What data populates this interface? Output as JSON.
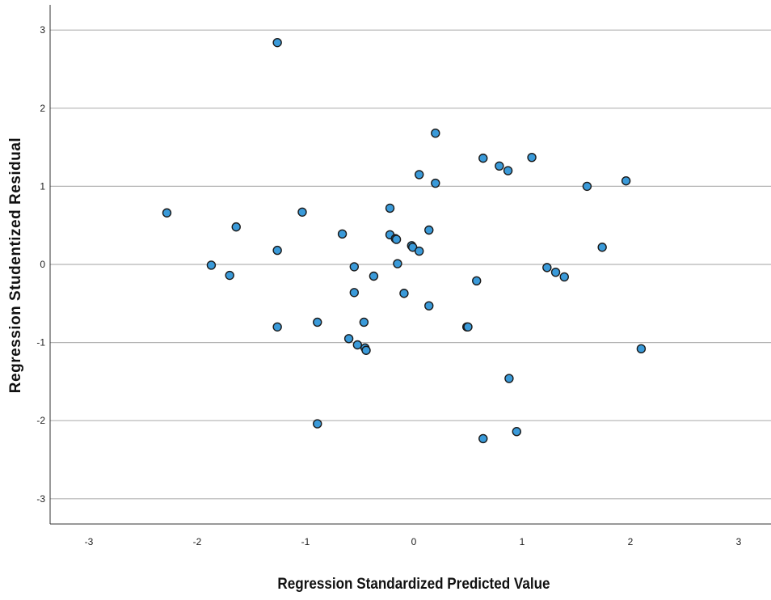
{
  "chart_data": {
    "type": "scatter",
    "xlabel": "Regression Standardized Predicted Value",
    "ylabel": "Regression Studentized Residual",
    "xlim": [
      -3.3,
      3.3
    ],
    "ylim": [
      -3.35,
      3.35
    ],
    "xticks": [
      -3,
      -2,
      -1,
      0,
      1,
      2,
      3
    ],
    "yticks": [
      -3,
      -2,
      -1,
      0,
      1,
      2,
      3
    ],
    "xtick_labels": [
      "-3",
      "-2",
      "-1",
      "0",
      "1",
      "2",
      "3"
    ],
    "ytick_labels": [
      "-3",
      "-2",
      "-1",
      "0",
      "1",
      "2",
      "3"
    ],
    "grid": "horizontal",
    "marker_color": "#3a9ad9",
    "marker_edge_color": "#1a1a1a",
    "gridline_color": "#b3b3b3",
    "series": [
      {
        "points": [
          [
            -2.28,
            0.66
          ],
          [
            -1.87,
            -0.01
          ],
          [
            -1.7,
            -0.14
          ],
          [
            -1.64,
            0.48
          ],
          [
            -1.26,
            2.84
          ],
          [
            -1.26,
            0.18
          ],
          [
            -1.26,
            -0.8
          ],
          [
            -1.03,
            0.67
          ],
          [
            -0.89,
            -0.74
          ],
          [
            -0.89,
            -2.04
          ],
          [
            -0.66,
            0.39
          ],
          [
            -0.6,
            -0.95
          ],
          [
            -0.55,
            -0.03
          ],
          [
            -0.55,
            -0.36
          ],
          [
            -0.52,
            -1.03
          ],
          [
            -0.46,
            -0.74
          ],
          [
            -0.45,
            -1.07
          ],
          [
            -0.44,
            -1.1
          ],
          [
            -0.37,
            -0.15
          ],
          [
            -0.22,
            0.72
          ],
          [
            -0.22,
            0.38
          ],
          [
            -0.17,
            0.33
          ],
          [
            -0.16,
            0.32
          ],
          [
            -0.15,
            0.01
          ],
          [
            -0.09,
            -0.37
          ],
          [
            -0.02,
            0.24
          ],
          [
            -0.01,
            0.22
          ],
          [
            0.05,
            0.17
          ],
          [
            0.05,
            1.15
          ],
          [
            0.14,
            0.44
          ],
          [
            0.14,
            -0.53
          ],
          [
            0.2,
            1.68
          ],
          [
            0.2,
            1.04
          ],
          [
            0.49,
            -0.8
          ],
          [
            0.5,
            -0.8
          ],
          [
            0.58,
            -0.21
          ],
          [
            0.64,
            1.36
          ],
          [
            0.64,
            -2.23
          ],
          [
            0.79,
            1.26
          ],
          [
            0.87,
            1.2
          ],
          [
            0.88,
            -1.46
          ],
          [
            0.95,
            -2.14
          ],
          [
            1.09,
            1.37
          ],
          [
            1.23,
            -0.04
          ],
          [
            1.31,
            -0.1
          ],
          [
            1.39,
            -0.16
          ],
          [
            1.6,
            1.0
          ],
          [
            1.74,
            0.22
          ],
          [
            1.96,
            1.07
          ],
          [
            2.1,
            -1.08
          ]
        ]
      }
    ]
  }
}
